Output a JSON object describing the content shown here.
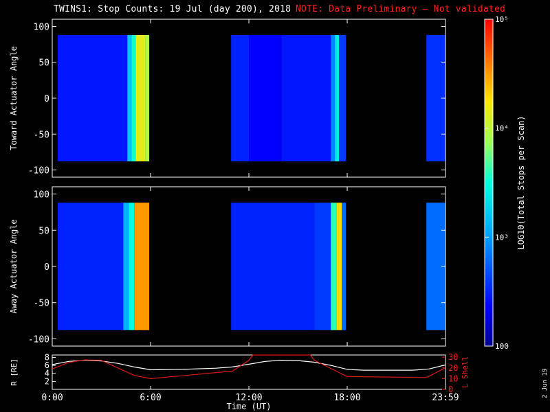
{
  "title": {
    "main": "TWINS1: Stop Counts: 19 Jul (day 200), 2018",
    "note": "NOTE: Data Preliminary — Not validated"
  },
  "side_date": "2 Jun 19",
  "colorbar": {
    "label": "LOG10(Total Stops per Scan)",
    "tick_labels": [
      "100",
      "10³",
      "10⁴",
      "10⁵"
    ]
  },
  "colors": {
    "background": "#000000",
    "axes": "#ffffff",
    "red_axis": "#ff2020",
    "l_shell_line": "#e01818",
    "r_line": "#ffffff",
    "title_note": "#ff2020"
  },
  "chart_data": [
    {
      "type": "heatmap",
      "ylabel": "Toward Actuator Angle",
      "ylim": [
        -110,
        110
      ],
      "y_ticks": [
        -100,
        -50,
        0,
        50,
        100
      ],
      "x_ticks": [
        "0:00",
        "6:00",
        "12:00",
        "18:00",
        "23:59"
      ],
      "data_extent_deg": [
        -88,
        88
      ],
      "color_scale": "log",
      "color_range": [
        100,
        100000
      ],
      "segments": [
        {
          "start": "0:20",
          "end": "5:55",
          "bands": [
            {
              "from": "0:20",
              "to": "4:35",
              "log": 2.45
            },
            {
              "from": "4:35",
              "to": "4:50",
              "log": 3.2
            },
            {
              "from": "4:50",
              "to": "5:05",
              "log": 3.55
            },
            {
              "from": "5:05",
              "to": "5:40",
              "log": 4.15
            },
            {
              "from": "5:40",
              "to": "5:55",
              "log": 3.95
            }
          ]
        },
        {
          "start": "10:55",
          "end": "17:55",
          "bands": [
            {
              "from": "10:55",
              "to": "12:00",
              "log": 2.5
            },
            {
              "from": "12:00",
              "to": "14:00",
              "log": 2.35
            },
            {
              "from": "14:00",
              "to": "17:00",
              "log": 2.45
            },
            {
              "from": "17:00",
              "to": "17:15",
              "log": 2.9
            },
            {
              "from": "17:15",
              "to": "17:30",
              "log": 3.4
            },
            {
              "from": "17:30",
              "to": "17:55",
              "log": 2.6
            }
          ]
        },
        {
          "start": "22:50",
          "end": "23:59",
          "bands": [
            {
              "from": "22:50",
              "to": "23:59",
              "log": 2.55
            }
          ]
        }
      ]
    },
    {
      "type": "heatmap",
      "ylabel": "Away Actuator Angle",
      "ylim": [
        -110,
        110
      ],
      "y_ticks": [
        -100,
        -50,
        0,
        50,
        100
      ],
      "x_ticks": [
        "0:00",
        "6:00",
        "12:00",
        "18:00",
        "23:59"
      ],
      "data_extent_deg": [
        -88,
        88
      ],
      "color_scale": "log",
      "color_range": [
        100,
        100000
      ],
      "segments": [
        {
          "start": "0:20",
          "end": "5:55",
          "bands": [
            {
              "from": "0:20",
              "to": "4:20",
              "log": 2.5
            },
            {
              "from": "4:20",
              "to": "4:40",
              "log": 3.1
            },
            {
              "from": "4:40",
              "to": "5:00",
              "log": 3.5
            },
            {
              "from": "5:00",
              "to": "5:55",
              "log": 4.5
            }
          ]
        },
        {
          "start": "10:55",
          "end": "17:55",
          "bands": [
            {
              "from": "10:55",
              "to": "16:00",
              "log": 2.5
            },
            {
              "from": "16:00",
              "to": "17:00",
              "log": 2.6
            },
            {
              "from": "17:00",
              "to": "17:20",
              "log": 3.6
            },
            {
              "from": "17:20",
              "to": "17:40",
              "log": 4.3
            },
            {
              "from": "17:40",
              "to": "17:55",
              "log": 2.8
            }
          ]
        },
        {
          "start": "22:50",
          "end": "23:59",
          "bands": [
            {
              "from": "22:50",
              "to": "23:59",
              "log": 2.8
            }
          ]
        }
      ]
    },
    {
      "type": "line",
      "xlabel": "Time (UT)",
      "x_ticks": [
        "0:00",
        "6:00",
        "12:00",
        "18:00",
        "23:59"
      ],
      "y_left": {
        "label": "R [RE]",
        "ticks": [
          2,
          4,
          6,
          8
        ],
        "ylim": [
          0,
          8.6
        ]
      },
      "y_right": {
        "label": "L Shell",
        "ticks": [
          0,
          10,
          20,
          30
        ],
        "ylim": [
          0,
          32
        ]
      },
      "series": [
        {
          "name": "R [RE]",
          "axis": "left",
          "x": [
            "0:00",
            "1:00",
            "2:00",
            "3:00",
            "4:00",
            "5:00",
            "6:00",
            "8:00",
            "10:00",
            "11:00",
            "12:00",
            "13:00",
            "14:00",
            "15:00",
            "16:00",
            "17:00",
            "18:00",
            "19:00",
            "20:00",
            "22:00",
            "23:00",
            "23:59"
          ],
          "values": [
            6.2,
            7.0,
            7.3,
            7.1,
            6.5,
            5.6,
            4.9,
            5.0,
            5.3,
            5.6,
            6.3,
            7.0,
            7.3,
            7.2,
            6.8,
            6.0,
            5.0,
            4.8,
            4.8,
            4.8,
            5.1,
            6.1
          ]
        },
        {
          "name": "L Shell",
          "axis": "right",
          "x": [
            "0:00",
            "1:00",
            "2:00",
            "3:00",
            "4:00",
            "5:00",
            "6:00",
            "11:00",
            "12:00",
            "12:15",
            "15:45",
            "16:00",
            "18:00",
            "22:50",
            "23:59"
          ],
          "values": [
            19,
            25,
            27.5,
            27,
            20,
            13,
            10,
            17,
            27,
            32,
            32,
            27,
            12,
            11,
            20
          ]
        }
      ]
    }
  ]
}
